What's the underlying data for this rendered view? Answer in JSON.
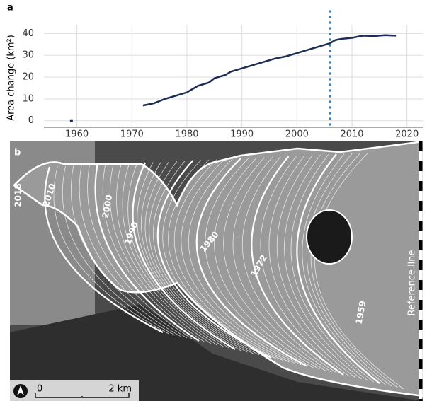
{
  "chart_data": {
    "type": "line",
    "panel": "a",
    "ylabel": "Area change (km²)",
    "xlim": [
      1954,
      2023
    ],
    "ylim": [
      -3,
      44
    ],
    "xticks": [
      1960,
      1970,
      1980,
      1990,
      2000,
      2010,
      2020
    ],
    "yticks": [
      0,
      10,
      20,
      30,
      40
    ],
    "grid": true,
    "vline": {
      "x": 2006,
      "color": "#3a85c0"
    },
    "series": [
      {
        "color": "#1e2d55",
        "x": [
          1959
        ],
        "values": [
          0
        ]
      },
      {
        "color": "#1e2d55",
        "x": [
          1972,
          1974,
          1976,
          1978,
          1980,
          1982,
          1984,
          1985,
          1987,
          1988,
          1990,
          1992,
          1994,
          1996,
          1998,
          2000,
          2002,
          2004,
          2006,
          2007,
          2008,
          2010,
          2012,
          2014,
          2016,
          2018
        ],
        "values": [
          7,
          8,
          10,
          11.5,
          13,
          16,
          17.5,
          19.5,
          21,
          22.5,
          24,
          25.5,
          27,
          28.5,
          29.5,
          31,
          32.5,
          34,
          35.5,
          37,
          37.5,
          38,
          39,
          38.8,
          39.2,
          39
        ]
      }
    ]
  },
  "map": {
    "panel": "b",
    "year_labels": [
      "2018",
      "2010",
      "2000",
      "1990",
      "1980",
      "1972",
      "1959"
    ],
    "reference_line": "Reference line",
    "scale": [
      "0",
      "2 km"
    ]
  }
}
